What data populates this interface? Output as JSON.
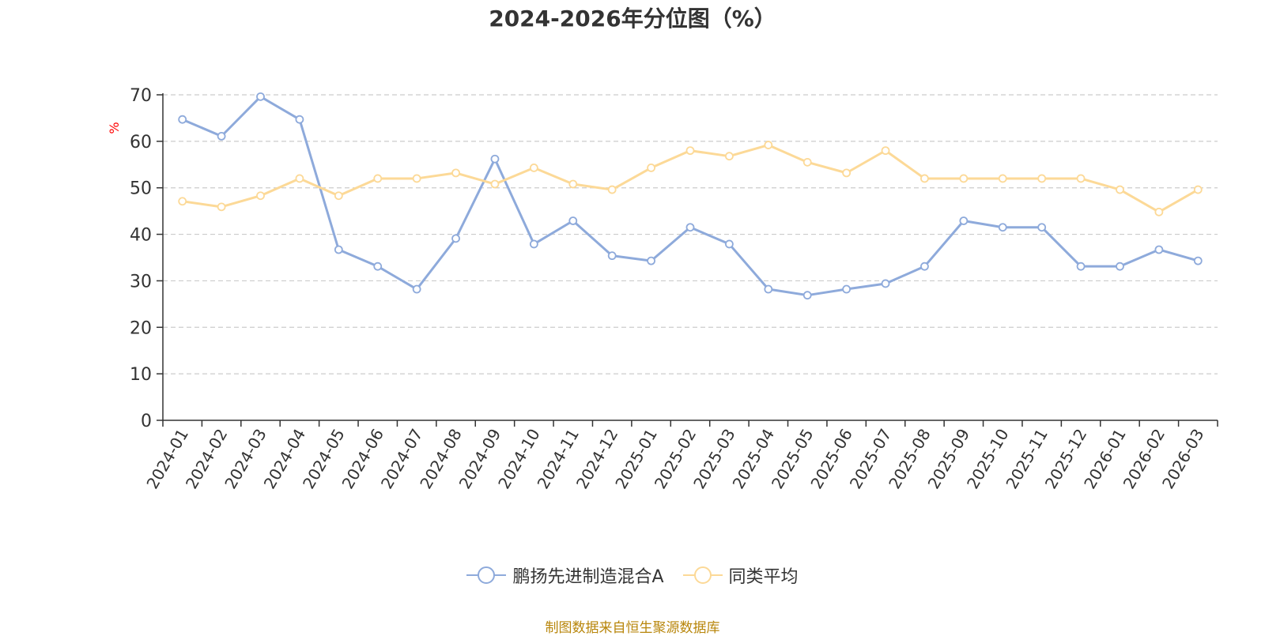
{
  "chart_data": {
    "type": "line",
    "title": "2024-2026年分位图（%）",
    "ylabel": "%",
    "ylim": [
      0,
      70
    ],
    "yticks": [
      0,
      10,
      20,
      30,
      40,
      50,
      60,
      70
    ],
    "grid": "horizontal-dashed",
    "legend_position": "bottom",
    "categories": [
      "2024-01",
      "2024-02",
      "2024-03",
      "2024-04",
      "2024-05",
      "2024-06",
      "2024-07",
      "2024-08",
      "2024-09",
      "2024-10",
      "2024-11",
      "2024-12",
      "2025-01",
      "2025-02",
      "2025-03",
      "2025-04",
      "2025-05",
      "2025-06",
      "2025-07",
      "2025-08",
      "2025-09",
      "2025-10",
      "2025-11",
      "2025-12",
      "2026-01",
      "2026-02",
      "2026-03"
    ],
    "series": [
      {
        "name": "鹏扬先进制造混合A",
        "color": "#8eaadb",
        "values": [
          64.7,
          61.1,
          69.6,
          64.7,
          36.7,
          33.1,
          28.2,
          39.1,
          56.2,
          37.9,
          42.9,
          35.4,
          34.3,
          41.5,
          37.9,
          28.2,
          26.9,
          28.2,
          29.4,
          33.1,
          42.9,
          41.5,
          41.5,
          33.1,
          33.1,
          36.7,
          34.3
        ]
      },
      {
        "name": "同类平均",
        "color": "#fcd997",
        "values": [
          47.1,
          45.9,
          48.3,
          52.0,
          48.3,
          52.0,
          52.0,
          53.2,
          50.8,
          54.3,
          50.8,
          49.6,
          54.3,
          58.0,
          56.8,
          59.2,
          55.5,
          53.2,
          58.0,
          52.0,
          52.0,
          52.0,
          52.0,
          52.0,
          49.6,
          44.8,
          49.6
        ]
      }
    ]
  },
  "legend": {
    "items": [
      {
        "label": "鹏扬先进制造混合A"
      },
      {
        "label": "同类平均"
      }
    ]
  },
  "source_note": "制图数据来自恒生聚源数据库",
  "colors": {
    "axis": "#333333",
    "grid": "#cccccc",
    "ylabel": "#ff0000",
    "source": "#b8860b"
  }
}
